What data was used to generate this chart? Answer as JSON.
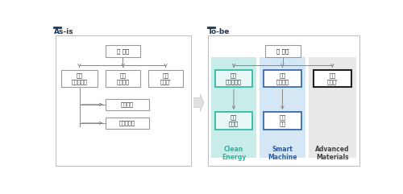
{
  "bg_color": "#ffffff",
  "title_color": "#1a3a5c",
  "title_bar_color": "#1a3a5c",
  "as_is_title": "As-is",
  "to_be_title": "To-be",
  "box_border_default": "#999999",
  "box_border_green": "#2ab5a0",
  "box_border_blue": "#2a5fa8",
  "box_border_dark": "#222222",
  "box_fill_green": "#e6f7f5",
  "box_fill_white": "#ffffff",
  "col_bg_green": "#c8ede8",
  "col_bg_blue": "#d5e6f5",
  "col_bg_gray": "#e8e8e8",
  "outer_border": "#bbbbbb",
  "label_green": "#2ab5a0",
  "label_blue": "#2a5fa8",
  "label_dark": "#444444",
  "line_color": "#888888",
  "arrow_color": "#aaaaaa",
  "clean_energy_label": "Clean\nEnergy",
  "smart_machine_label": "Smart\nMachine",
  "advanced_materials_label": "Advanced\nMaterials",
  "font_size_title": 6.5,
  "font_size_box": 5.0,
  "font_size_label": 5.5
}
